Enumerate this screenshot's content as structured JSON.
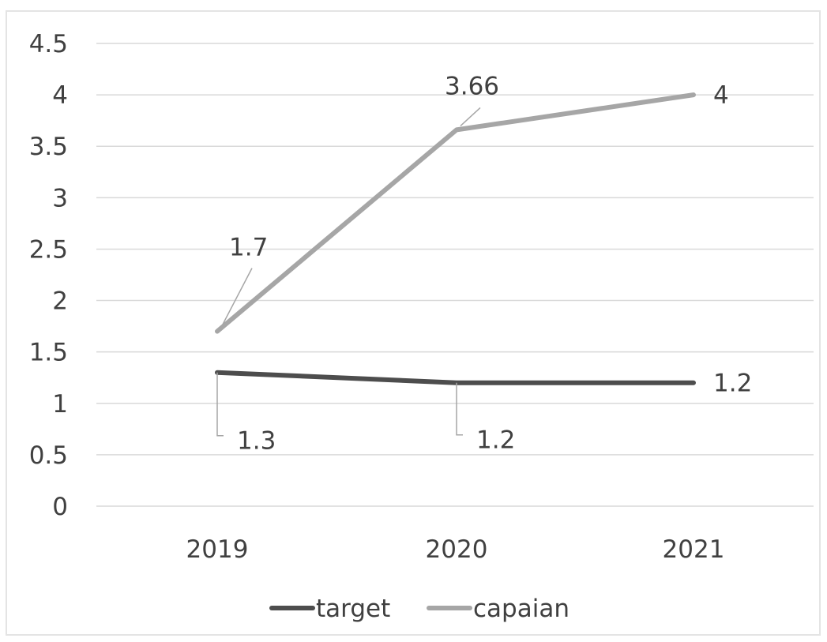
{
  "chart_data": {
    "type": "line",
    "categories": [
      "2019",
      "2020",
      "2021"
    ],
    "ylim": [
      0,
      4.5
    ],
    "yticks": [
      "0",
      "0.5",
      "1",
      "1.5",
      "2",
      "2.5",
      "3",
      "3.5",
      "4",
      "4.5"
    ],
    "grid": true,
    "legend_position": "bottom",
    "series": [
      {
        "name": "target",
        "values": [
          1.3,
          1.2,
          1.2
        ],
        "labels": [
          "1.3",
          "1.2",
          "1.2"
        ],
        "color": "#4d4d4d"
      },
      {
        "name": "capaian",
        "values": [
          1.7,
          3.66,
          4
        ],
        "labels": [
          "1.7",
          "3.66",
          "4"
        ],
        "color": "#a6a6a6"
      }
    ]
  }
}
